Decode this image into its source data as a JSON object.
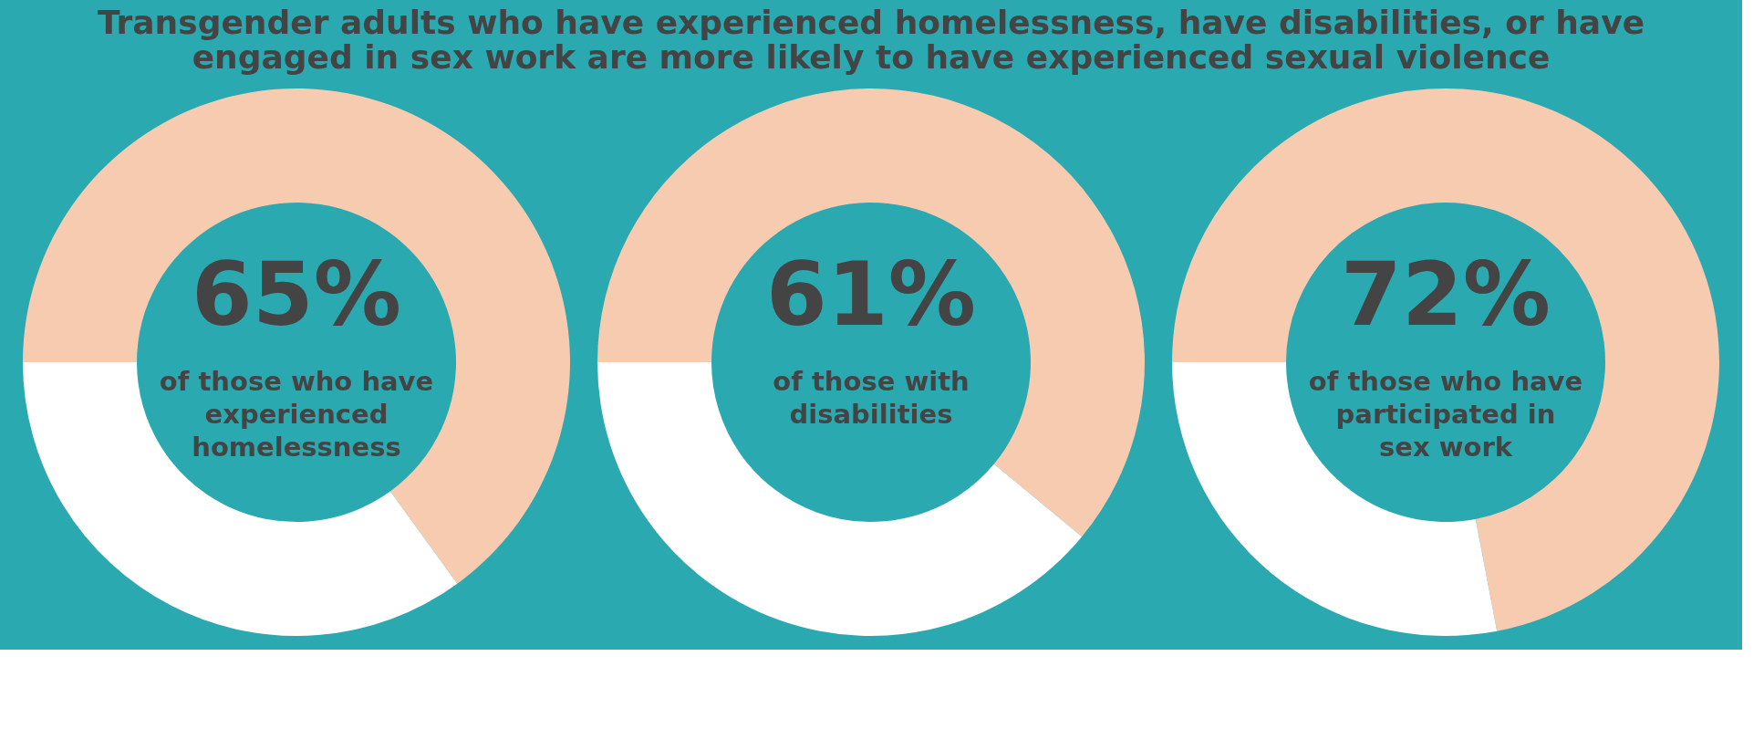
{
  "chart_data": [
    {
      "type": "donut",
      "title": [
        "Transgender adults who have experienced homelessness, have disabilities, or have",
        "engaged in sex work are more likely to have experienced sexual violence"
      ],
      "categories": [
        null,
        null
      ],
      "values": [
        65,
        35
      ],
      "colors": [
        "#f6cbb0",
        "#ffffff"
      ],
      "value_labels": [
        "65%",
        null
      ],
      "annotations": [
        "of those who have experienced homelessness"
      ],
      "legend": false
    },
    {
      "type": "donut",
      "categories": [
        null,
        null
      ],
      "values": [
        61,
        39
      ],
      "colors": [
        "#f6cbb0",
        "#ffffff"
      ],
      "value_labels": [
        "61%",
        null
      ],
      "annotations": [
        "of those with disabilities"
      ],
      "legend": false
    },
    {
      "type": "donut",
      "categories": [
        null,
        null
      ],
      "values": [
        72,
        28
      ],
      "colors": [
        "#f6cbb0",
        "#ffffff"
      ],
      "value_labels": [
        "72%",
        null
      ],
      "annotations": [
        "of those who have participated in sex work"
      ],
      "legend": false
    }
  ]
}
